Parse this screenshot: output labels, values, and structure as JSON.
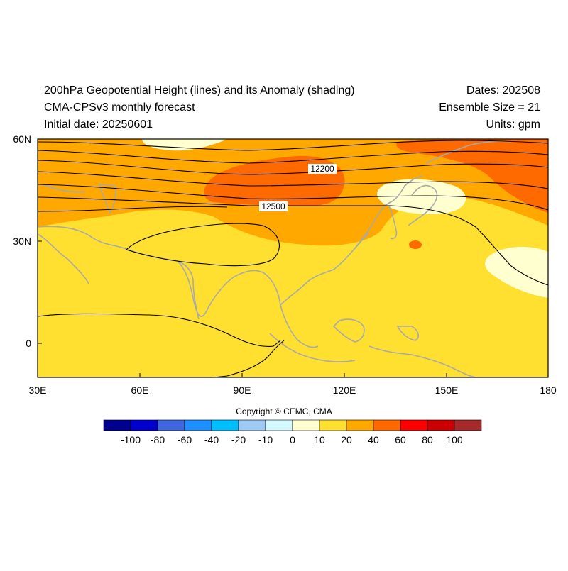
{
  "header": {
    "title_line1": "200hPa Geopotential Height (lines) and its Anomaly (shading)",
    "title_line2": "CMA-CPSv3 monthly forecast",
    "title_line3": "Initial date: 20250601",
    "right_line1": "Dates: 202508",
    "right_line2": "Ensemble Size = 21",
    "right_line3": "Units: gpm"
  },
  "map": {
    "lon_range": [
      30,
      180
    ],
    "lat_range": [
      -10,
      60
    ],
    "lon_ticks": [
      "30E",
      "60E",
      "90E",
      "120E",
      "150E",
      "180"
    ],
    "lat_ticks": [
      "60N",
      "30N",
      "0"
    ],
    "contour_labels": [
      "12200",
      "12500"
    ]
  },
  "colorbar": {
    "labels": [
      "-100",
      "-80",
      "-60",
      "-40",
      "-20",
      "-10",
      "0",
      "10",
      "20",
      "40",
      "60",
      "80",
      "100"
    ],
    "colors": [
      "#00008f",
      "#0000cd",
      "#3f67e0",
      "#1e8fff",
      "#00bfff",
      "#9ecbf5",
      "#d2f9ff",
      "#ffffd0",
      "#ffdf30",
      "#ffa800",
      "#ff6a00",
      "#ff0000",
      "#cc0000",
      "#a52a2a"
    ]
  },
  "footer": {
    "copyright": "Copyright © CEMC, CMA"
  }
}
